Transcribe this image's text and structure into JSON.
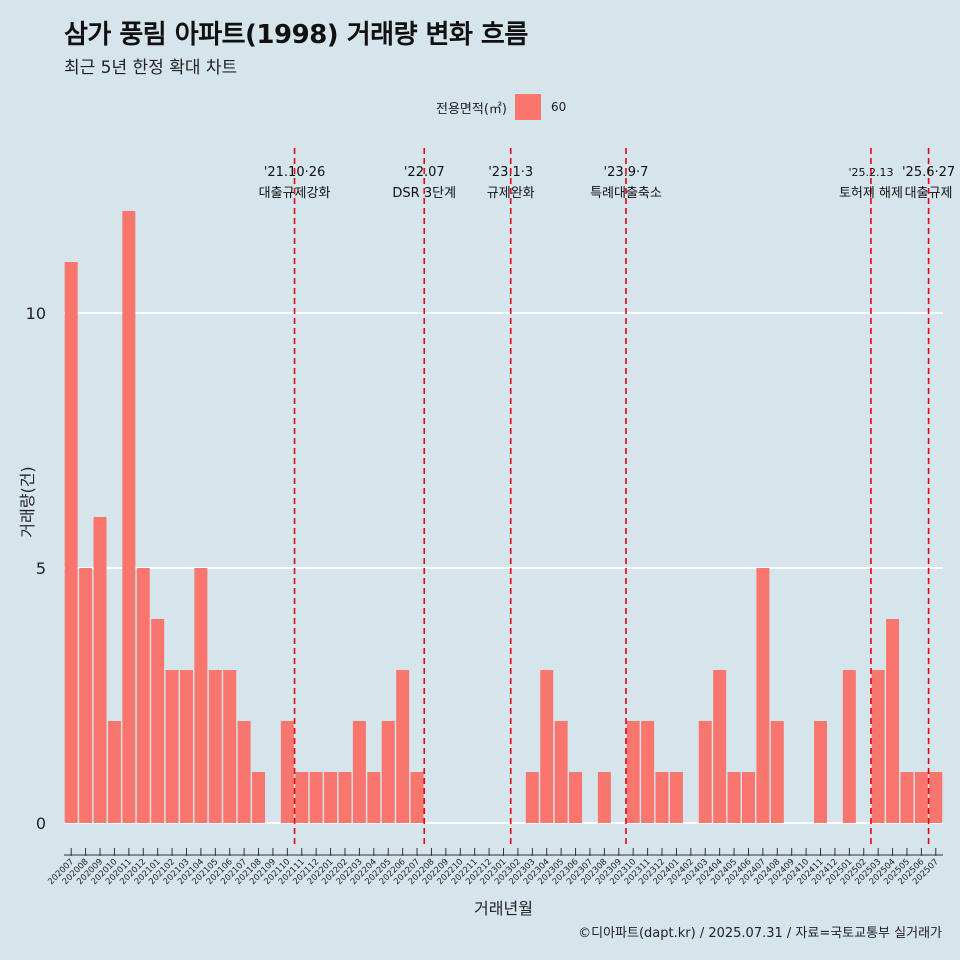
{
  "title": "삼가 풍림 아파트(1998) 거래량 변화 흐름",
  "subtitle": "최근 5년 한정 확대 차트",
  "caption": "©디아파트(dapt.kr) / 2025.07.31 / 자료=국토교통부 실거래가",
  "colors": {
    "bar": "#f8766d",
    "vline": "#e8000b",
    "grid": "#ffffff",
    "background": "#d6e4ec"
  },
  "chart_data": {
    "type": "bar",
    "xlabel": "거래년월",
    "ylabel": "거래량(건)",
    "ylim": [
      0,
      12
    ],
    "yticks": [
      0,
      5,
      10
    ],
    "legend": {
      "title": "전용면적(㎡)",
      "entries": [
        "60"
      ],
      "position": "top"
    },
    "categories": [
      "202007",
      "202008",
      "202009",
      "202010",
      "202011",
      "202012",
      "202101",
      "202102",
      "202103",
      "202104",
      "202105",
      "202106",
      "202107",
      "202108",
      "202109",
      "202110",
      "202111",
      "202112",
      "202201",
      "202202",
      "202203",
      "202204",
      "202205",
      "202206",
      "202207",
      "202208",
      "202209",
      "202210",
      "202211",
      "202212",
      "202301",
      "202302",
      "202303",
      "202304",
      "202305",
      "202306",
      "202307",
      "202308",
      "202309",
      "202310",
      "202311",
      "202312",
      "202401",
      "202402",
      "202403",
      "202404",
      "202405",
      "202406",
      "202407",
      "202408",
      "202409",
      "202410",
      "202411",
      "202412",
      "202501",
      "202502",
      "202503",
      "202504",
      "202505",
      "202506",
      "202507"
    ],
    "series": [
      {
        "name": "60",
        "values": [
          11,
          5,
          6,
          2,
          12,
          5,
          4,
          3,
          3,
          5,
          3,
          3,
          2,
          1,
          0,
          2,
          1,
          1,
          1,
          1,
          2,
          1,
          2,
          3,
          1,
          0,
          0,
          0,
          0,
          0,
          0,
          0,
          1,
          3,
          2,
          1,
          0,
          1,
          0,
          2,
          2,
          1,
          1,
          0,
          2,
          3,
          1,
          1,
          5,
          2,
          0,
          0,
          2,
          0,
          3,
          0,
          3,
          4,
          1,
          1,
          1
        ]
      }
    ],
    "annotations": [
      {
        "after": "202110",
        "date": "'21.10·26",
        "label": "대출규제강화"
      },
      {
        "after": "202207",
        "date": "'22.07",
        "label": "DSR 3단계"
      },
      {
        "after": "202301",
        "date": "'23.1·3",
        "label": "규제완화"
      },
      {
        "after": "202309",
        "date": "'23.9·7",
        "label": "특례대출축소"
      },
      {
        "after": "202502",
        "date": "'25.2.13",
        "label": "토허제 해제"
      },
      {
        "after": "202506",
        "date": "'25.6·27",
        "label": "대출규제"
      }
    ]
  }
}
